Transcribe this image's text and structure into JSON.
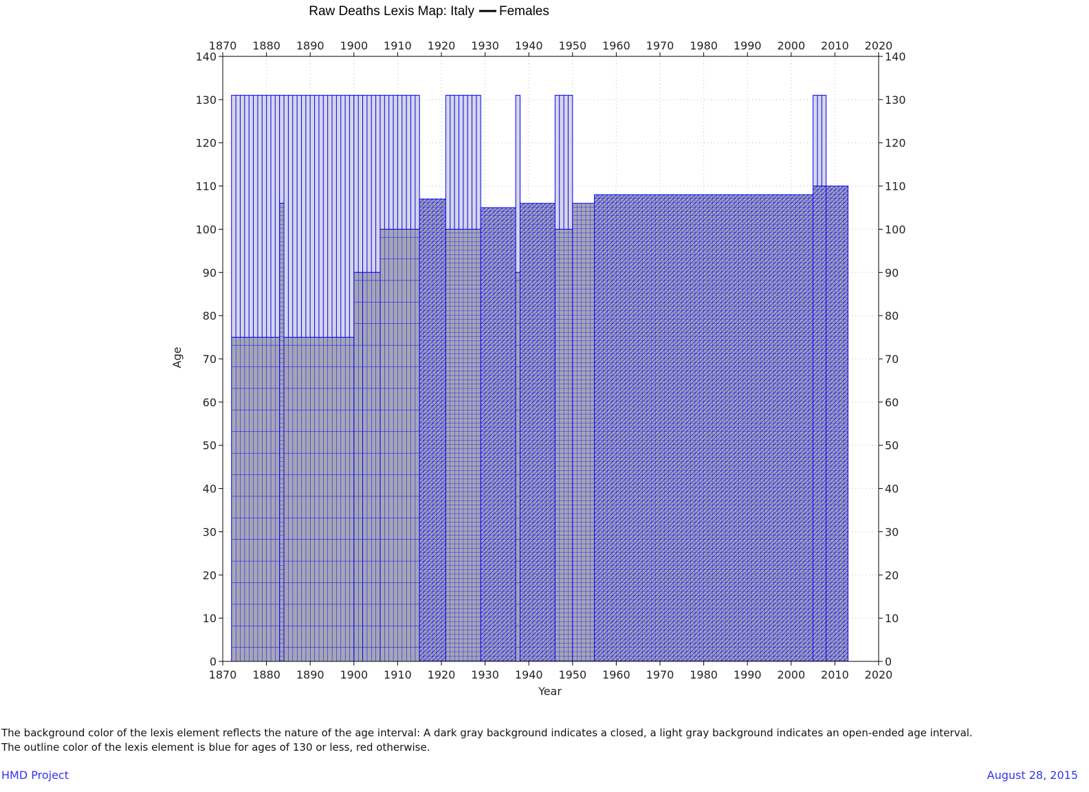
{
  "chart_data": {
    "type": "lexis-map",
    "title": "Raw Deaths Lexis Map: Italy",
    "legend": {
      "entries": [
        {
          "name": "Females",
          "color": "#000000"
        }
      ],
      "position": "top-center"
    },
    "xlabel": "Year",
    "ylabel": "Age",
    "xlim": [
      1870,
      2020
    ],
    "ylim": [
      0,
      140
    ],
    "x_ticks": [
      1870,
      1880,
      1890,
      1900,
      1910,
      1920,
      1930,
      1940,
      1950,
      1960,
      1970,
      1980,
      1990,
      2000,
      2010,
      2020
    ],
    "y_ticks": [
      0,
      10,
      20,
      30,
      40,
      50,
      60,
      70,
      80,
      90,
      100,
      110,
      120,
      130,
      140
    ],
    "axes": {
      "top_ticks": true,
      "right_ticks": true,
      "grid": "dotted"
    },
    "colors": {
      "closed_bg": "#a6a6b4",
      "open_bg": "#d6d6e4",
      "outline_le130": "#0000ff",
      "outline_gt130": "#ff0000"
    },
    "open_interval_top": 131,
    "periods": [
      {
        "from": 1872,
        "to": 1883,
        "closed_top": 75,
        "open": true,
        "grid": "5-year"
      },
      {
        "from": 1883,
        "to": 1884,
        "closed_top": 106,
        "open": true,
        "grid": "1-year"
      },
      {
        "from": 1884,
        "to": 1900,
        "closed_top": 75,
        "open": true,
        "grid": "5-year"
      },
      {
        "from": 1900,
        "to": 1902,
        "closed_top": 90,
        "open": true,
        "grid": "5-year"
      },
      {
        "from": 1902,
        "to": 1906,
        "closed_top": 90,
        "open": true,
        "grid": "5-year"
      },
      {
        "from": 1906,
        "to": 1915,
        "closed_top": 100,
        "open": true,
        "grid": "5-year"
      },
      {
        "from": 1915,
        "to": 1921,
        "closed_top": 107,
        "open": false,
        "grid": "triangles"
      },
      {
        "from": 1921,
        "to": 1929,
        "closed_top": 100,
        "open": true,
        "grid": "1-year"
      },
      {
        "from": 1929,
        "to": 1937,
        "closed_top": 105,
        "open": false,
        "grid": "triangles"
      },
      {
        "from": 1937,
        "to": 1938,
        "closed_top": 90,
        "open": true,
        "grid": "5-year"
      },
      {
        "from": 1938,
        "to": 1946,
        "closed_top": 106,
        "open": false,
        "grid": "triangles"
      },
      {
        "from": 1946,
        "to": 1950,
        "closed_top": 100,
        "open": true,
        "grid": "1-year"
      },
      {
        "from": 1950,
        "to": 1955,
        "closed_top": 106,
        "open": false,
        "grid": "1-year"
      },
      {
        "from": 1955,
        "to": 2005,
        "closed_top": 108,
        "open": false,
        "grid": "triangles"
      },
      {
        "from": 2005,
        "to": 2008,
        "closed_top": 110,
        "open": true,
        "grid": "triangles"
      },
      {
        "from": 2008,
        "to": 2013,
        "closed_top": 110,
        "open": false,
        "grid": "triangles"
      }
    ]
  },
  "footnote": {
    "line1": "The background color of the lexis element reflects the nature of the age interval: A dark gray background indicates a closed, a light gray background indicates an open-ended age interval.",
    "line2": "The outline color of the lexis element is blue for ages of 130 or less, red otherwise."
  },
  "footer": {
    "left": "HMD Project",
    "right": "August 28, 2015"
  }
}
